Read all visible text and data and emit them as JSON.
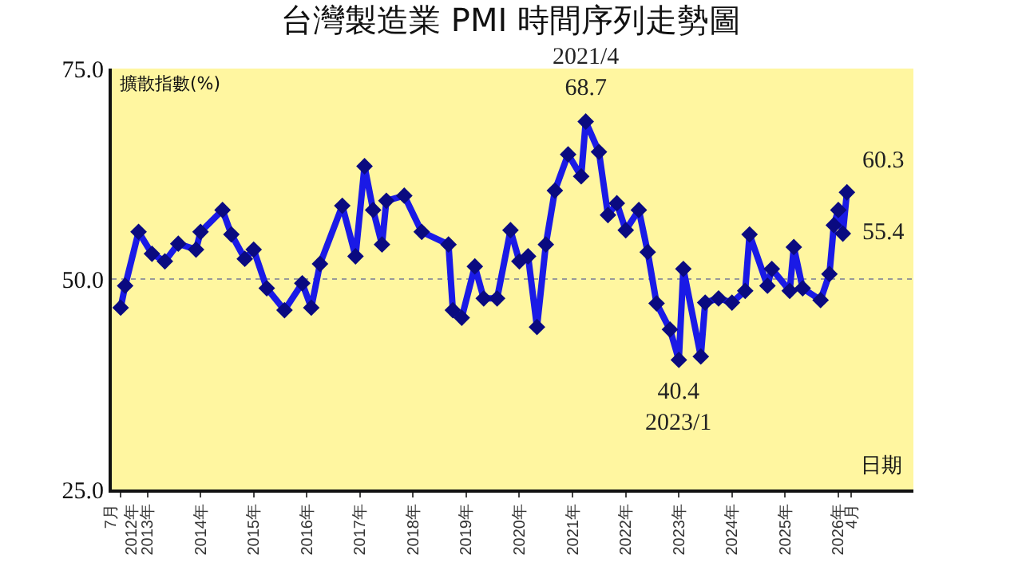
{
  "chart_data": {
    "type": "line",
    "title": "台灣製造業 PMI 時間序列走勢圖",
    "ylabel": "擴散指數(%)",
    "xlabel": "日期",
    "x": [
      "2012-07",
      "2012-08",
      "2012-11",
      "2013-02",
      "2013-05",
      "2013-08",
      "2013-12",
      "2014-01",
      "2014-06",
      "2014-08",
      "2014-11",
      "2015-01",
      "2015-04",
      "2015-08",
      "2015-12",
      "2016-02",
      "2016-04",
      "2016-09",
      "2016-12",
      "2017-02",
      "2017-04",
      "2017-06",
      "2017-07",
      "2017-11",
      "2018-03",
      "2018-09",
      "2018-10",
      "2018-12",
      "2019-03",
      "2019-05",
      "2019-08",
      "2019-11",
      "2020-01",
      "2020-03",
      "2020-05",
      "2020-07",
      "2020-09",
      "2020-12",
      "2021-03",
      "2021-04",
      "2021-07",
      "2021-09",
      "2021-11",
      "2022-01",
      "2022-04",
      "2022-06",
      "2022-08",
      "2022-11",
      "2023-01",
      "2023-02",
      "2023-06",
      "2023-07",
      "2023-10",
      "2024-01",
      "2024-04",
      "2024-05",
      "2024-09",
      "2024-10",
      "2025-02",
      "2025-03",
      "2025-05",
      "2025-09",
      "2025-11",
      "2025-12",
      "2026-01",
      "2026-02",
      "2026-03"
    ],
    "series": [
      {
        "color": "#1a1ae6",
        "values": [
          46.6,
          49.2,
          55.6,
          53,
          52.1,
          54.2,
          53.5,
          55.6,
          58.2,
          55.3,
          52.4,
          53.5,
          48.9,
          46.3,
          49.5,
          46.6,
          51.8,
          58.7,
          52.7,
          63.4,
          58.2,
          54.1,
          59.3,
          59.9,
          55.6,
          54.1,
          46.3,
          45.4,
          51.5,
          47.7,
          47.7,
          55.8,
          52.1,
          52.7,
          44.3,
          54.1,
          60.5,
          64.8,
          62.2,
          68.7,
          65.1,
          57.6,
          59,
          55.8,
          58.2,
          53.2,
          47.1,
          44,
          40.4,
          51.2,
          40.8,
          47.2,
          47.7,
          47.2,
          48.6,
          55.3,
          49.2,
          51.2,
          48.6,
          53.8,
          48.9,
          47.5,
          50.6,
          56.4,
          58.2,
          55.4,
          60.3
        ]
      }
    ],
    "marker": "diamond",
    "line_style": "solid",
    "grid": false,
    "xlim": [
      "2012-05",
      "2027-06"
    ],
    "xticks": [
      {
        "value": "2012-07",
        "label": "7月\n2012年"
      },
      {
        "value": "2013-01",
        "label": "2013年"
      },
      {
        "value": "2014-01",
        "label": "2014年"
      },
      {
        "value": "2015-01",
        "label": "2015年"
      },
      {
        "value": "2016-01",
        "label": "2016年"
      },
      {
        "value": "2017-01",
        "label": "2017年"
      },
      {
        "value": "2018-01",
        "label": "2018年"
      },
      {
        "value": "2019-01",
        "label": "2019年"
      },
      {
        "value": "2020-01",
        "label": "2020年"
      },
      {
        "value": "2021-01",
        "label": "2021年"
      },
      {
        "value": "2022-01",
        "label": "2022年"
      },
      {
        "value": "2023-01",
        "label": "2023年"
      },
      {
        "value": "2024-01",
        "label": "2024年"
      },
      {
        "value": "2025-01",
        "label": "2025年"
      },
      {
        "value": "2026-01",
        "label": "2026年"
      },
      {
        "value": "2026-04",
        "label": "4月"
      }
    ],
    "ylim": [
      25,
      75
    ],
    "yticks": [
      {
        "value": 25,
        "label": "25.0"
      },
      {
        "value": 50,
        "label": "50.0"
      },
      {
        "value": 75,
        "label": "75.0"
      }
    ],
    "ref_lines": [
      {
        "axis": "y",
        "value": 50,
        "color": "#999999",
        "line_style": "dotted"
      }
    ],
    "annotations": [
      {
        "text": "2021/4\n68.7",
        "x": "2021-04",
        "y": 68.7
      },
      {
        "text": "40.4\n2023/1",
        "x": "2023-01",
        "y": 40.4
      },
      {
        "text": "60.3",
        "x": "2026-03",
        "y": 60.3
      },
      {
        "text": "55.4",
        "x": "2026-02",
        "y": 55.4
      }
    ]
  }
}
